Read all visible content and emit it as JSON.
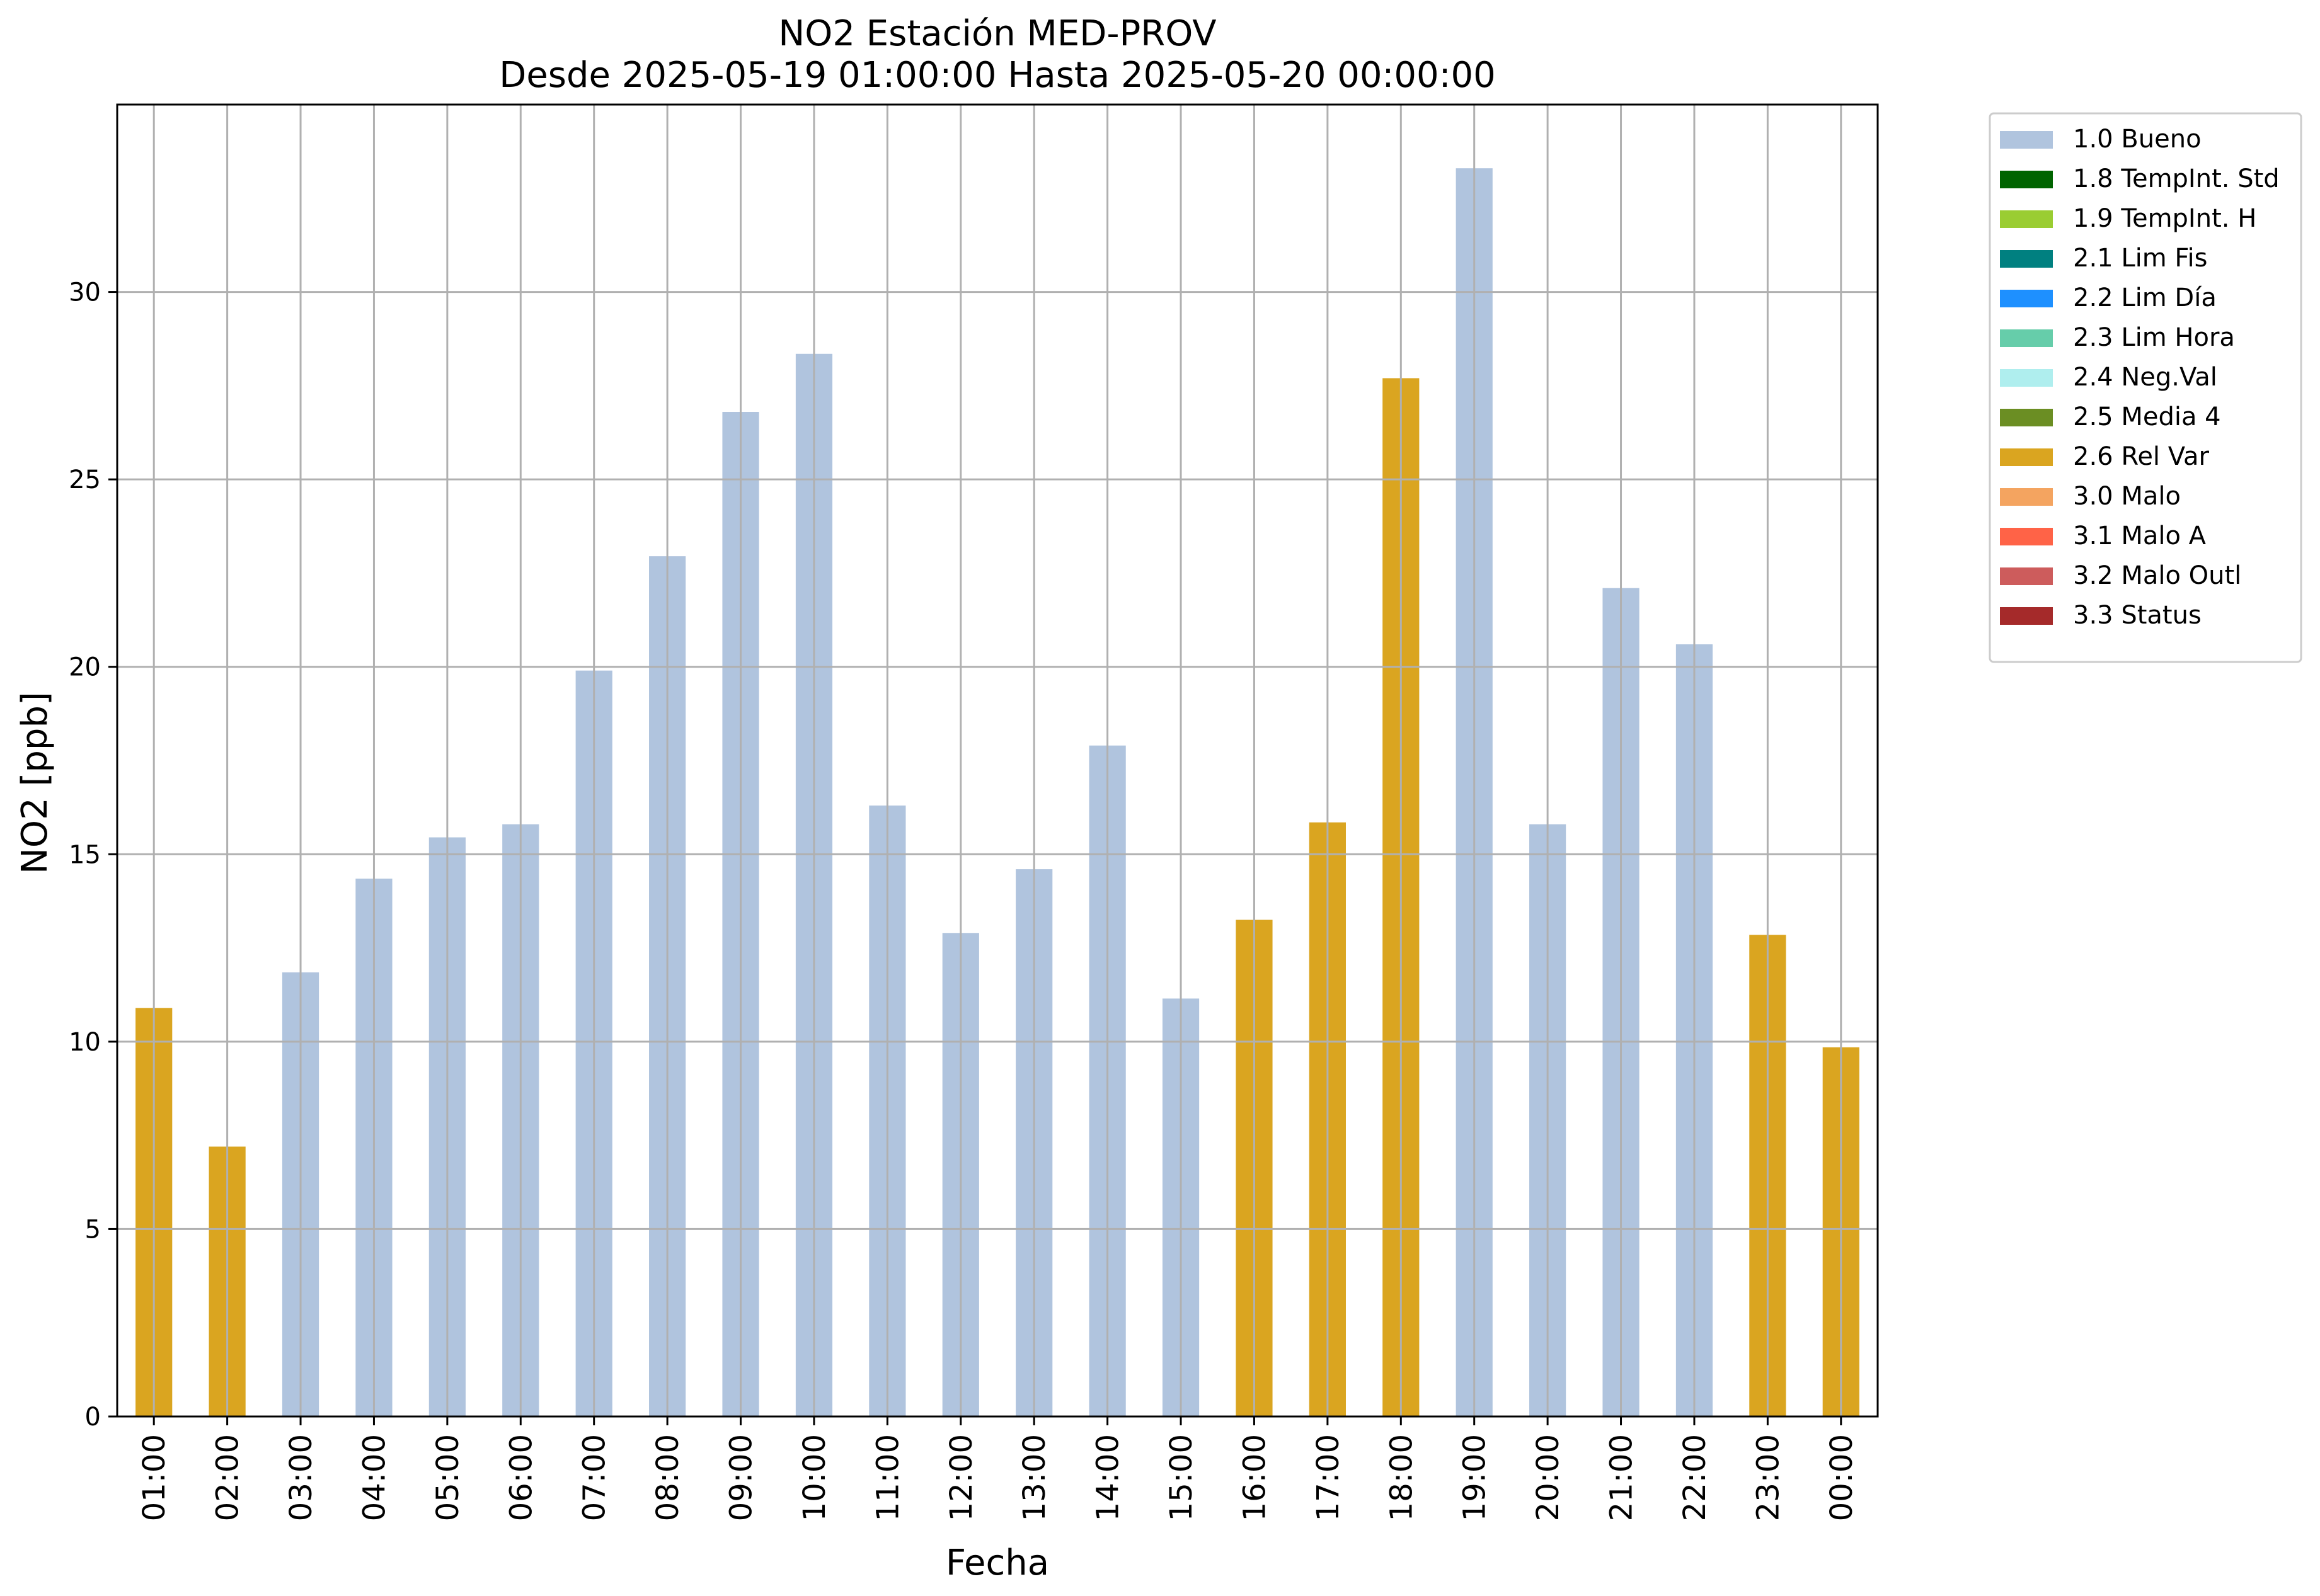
{
  "chart_data": {
    "type": "bar",
    "title": "NO2 Estación MED-PROV",
    "subtitle": "Desde 2025-05-19 01:00:00 Hasta 2025-05-20 00:00:00",
    "xlabel": "Fecha",
    "ylabel": "NO2 [ppb]",
    "ylim": [
      0,
      35
    ],
    "yticks": [
      0,
      5,
      10,
      15,
      20,
      25,
      30
    ],
    "grid": true,
    "legend_position": "outside-right-top",
    "categories": [
      "01:00",
      "02:00",
      "03:00",
      "04:00",
      "05:00",
      "06:00",
      "07:00",
      "08:00",
      "09:00",
      "10:00",
      "11:00",
      "12:00",
      "13:00",
      "14:00",
      "15:00",
      "16:00",
      "17:00",
      "18:00",
      "19:00",
      "20:00",
      "21:00",
      "22:00",
      "23:00",
      "00:00"
    ],
    "values": [
      10.9,
      7.2,
      11.85,
      14.35,
      15.45,
      15.8,
      19.9,
      22.95,
      26.8,
      28.35,
      16.3,
      12.9,
      14.6,
      17.9,
      11.15,
      13.25,
      15.85,
      27.7,
      33.3,
      15.8,
      22.1,
      20.6,
      12.85,
      9.85
    ],
    "flags": [
      "2.6 Rel Var",
      "2.6 Rel Var",
      "1.0 Bueno",
      "1.0 Bueno",
      "1.0 Bueno",
      "1.0 Bueno",
      "1.0 Bueno",
      "1.0 Bueno",
      "1.0 Bueno",
      "1.0 Bueno",
      "1.0 Bueno",
      "1.0 Bueno",
      "1.0 Bueno",
      "1.0 Bueno",
      "1.0 Bueno",
      "2.6 Rel Var",
      "2.6 Rel Var",
      "2.6 Rel Var",
      "1.0 Bueno",
      "1.0 Bueno",
      "1.0 Bueno",
      "1.0 Bueno",
      "2.6 Rel Var",
      "2.6 Rel Var"
    ],
    "legend": [
      {
        "label": "1.0 Bueno",
        "color": "#b0c4de"
      },
      {
        "label": "1.8 TempInt. Std",
        "color": "#006400"
      },
      {
        "label": "1.9 TempInt. H",
        "color": "#9acd32"
      },
      {
        "label": "2.1 Lim Fis",
        "color": "#008080"
      },
      {
        "label": "2.2 Lim Día",
        "color": "#1e90ff"
      },
      {
        "label": "2.3 Lim Hora",
        "color": "#66cdaa"
      },
      {
        "label": "2.4 Neg.Val",
        "color": "#afeeee"
      },
      {
        "label": "2.5 Media 4",
        "color": "#6b8e23"
      },
      {
        "label": "2.6 Rel Var",
        "color": "#daa520"
      },
      {
        "label": "3.0 Malo",
        "color": "#f4a460"
      },
      {
        "label": "3.1 Malo A",
        "color": "#ff6347"
      },
      {
        "label": "3.2 Malo Outl",
        "color": "#cd5c5c"
      },
      {
        "label": "3.3 Status",
        "color": "#a52a2a"
      }
    ]
  }
}
